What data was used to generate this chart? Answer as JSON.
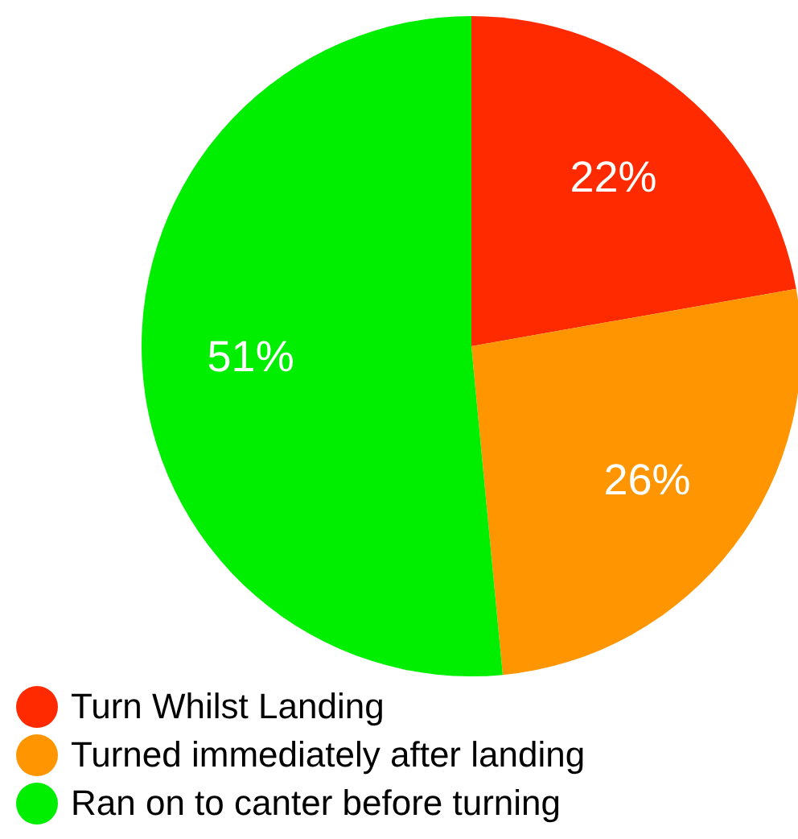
{
  "chart_data": {
    "type": "pie",
    "categories": [
      "Turn Whilst Landing",
      "Turned immediately after landing",
      "Ran on to canter before turning"
    ],
    "values": [
      22,
      26,
      51
    ],
    "colors": [
      "#ff2a00",
      "#ff9500",
      "#00ee00"
    ],
    "value_labels": [
      "22%",
      "26%",
      "51%"
    ],
    "legend": "bottom left"
  }
}
